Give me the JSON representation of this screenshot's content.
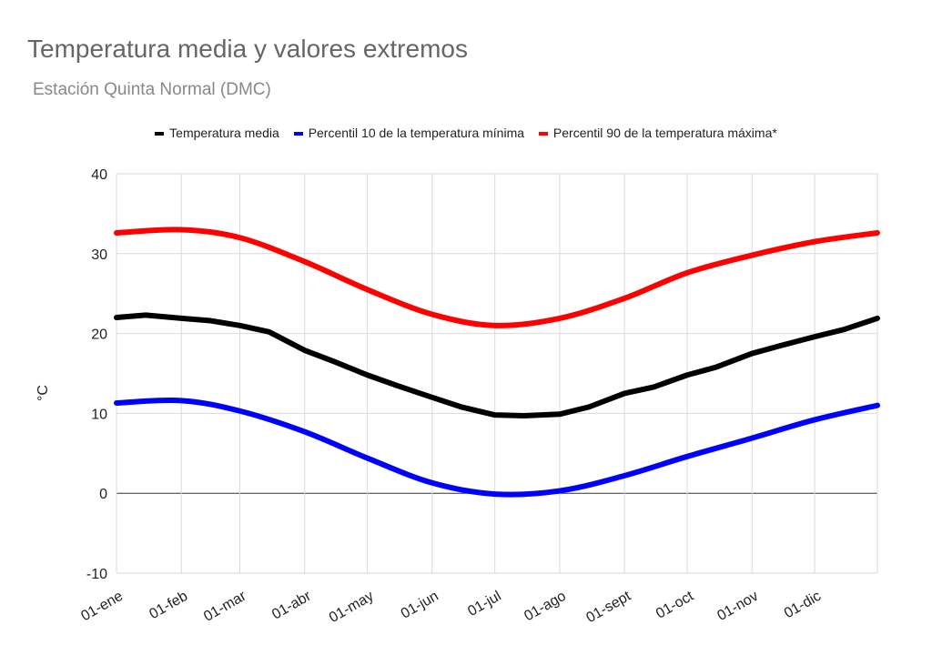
{
  "chart_data": {
    "type": "line",
    "title": "Temperatura media y valores extremos",
    "subtitle": "Estación Quinta Normal (DMC)",
    "xlabel": "",
    "ylabel": "°C",
    "ylim": [
      -10,
      40
    ],
    "yticks": [
      -10,
      0,
      10,
      20,
      30,
      40
    ],
    "xlim_day_of_year": [
      1,
      365
    ],
    "xticks": [
      {
        "day": 1,
        "label": "01-ene"
      },
      {
        "day": 32,
        "label": "01-feb"
      },
      {
        "day": 60,
        "label": "01-mar"
      },
      {
        "day": 91,
        "label": "01-abr"
      },
      {
        "day": 121,
        "label": "01-may"
      },
      {
        "day": 152,
        "label": "01-jun"
      },
      {
        "day": 182,
        "label": "01-jul"
      },
      {
        "day": 213,
        "label": "01-ago"
      },
      {
        "day": 244,
        "label": "01-sept"
      },
      {
        "day": 274,
        "label": "01-oct"
      },
      {
        "day": 305,
        "label": "01-nov"
      },
      {
        "day": 335,
        "label": "01-dic"
      }
    ],
    "grid": true,
    "legend_position": "top",
    "series": [
      {
        "name": "Temperatura media",
        "color": "#000000",
        "x": [
          1,
          15,
          32,
          46,
          60,
          74,
          91,
          105,
          121,
          135,
          152,
          166,
          182,
          196,
          213,
          227,
          244,
          258,
          274,
          288,
          305,
          319,
          335,
          349,
          365
        ],
        "y": [
          22.0,
          22.3,
          21.9,
          21.6,
          21.0,
          20.2,
          17.9,
          16.5,
          14.8,
          13.5,
          12.0,
          10.8,
          9.8,
          9.7,
          9.9,
          10.8,
          12.5,
          13.3,
          14.8,
          15.8,
          17.5,
          18.5,
          19.6,
          20.5,
          21.9
        ]
      },
      {
        "name": "Percentil 10 de la temperatura mínima",
        "color": "#0000ff",
        "x": [
          1,
          32,
          60,
          91,
          121,
          152,
          182,
          213,
          244,
          274,
          305,
          335,
          365
        ],
        "y": [
          11.3,
          11.6,
          10.3,
          7.7,
          4.4,
          1.3,
          -0.1,
          0.3,
          2.2,
          4.6,
          6.9,
          9.2,
          11.0
        ]
      },
      {
        "name": "Percentil 90 de la temperatura máxima*",
        "color": "#ff0000",
        "x": [
          1,
          32,
          60,
          91,
          121,
          152,
          182,
          213,
          244,
          274,
          305,
          335,
          365
        ],
        "y": [
          32.6,
          33.0,
          32.0,
          29.0,
          25.5,
          22.4,
          21.0,
          21.9,
          24.4,
          27.6,
          29.8,
          31.5,
          32.6
        ]
      }
    ]
  }
}
